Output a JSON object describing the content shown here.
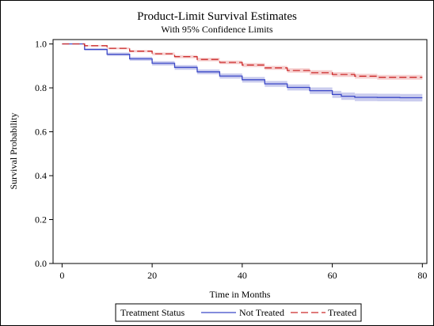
{
  "chart_data": {
    "type": "line",
    "title": "Product-Limit Survival Estimates",
    "subtitle": "With 95% Confidence Limits",
    "xlabel": "Time in Months",
    "ylabel": "Survival Probability",
    "xlim": [
      -2,
      81
    ],
    "ylim": [
      0,
      1.02
    ],
    "x_ticks": [
      0,
      20,
      40,
      60,
      80
    ],
    "y_ticks": [
      0.0,
      0.2,
      0.4,
      0.6,
      0.8,
      1.0
    ],
    "x_tick_labels": [
      "0",
      "20",
      "40",
      "60",
      "80"
    ],
    "y_tick_labels": [
      "0.0",
      "0.2",
      "0.4",
      "0.6",
      "0.8",
      "1.0"
    ],
    "grid": false,
    "legend": {
      "title": "Treatment Status",
      "placement": "bottom"
    },
    "series": [
      {
        "name": "Not Treated",
        "color": "#3a47c7",
        "band_color": "#b8bbe8",
        "line_style": "solid",
        "x": [
          0,
          5,
          10,
          15,
          20,
          25,
          30,
          35,
          40,
          45,
          50,
          55,
          60,
          62,
          65,
          70,
          75,
          80
        ],
        "y": [
          1.0,
          0.975,
          0.953,
          0.932,
          0.912,
          0.893,
          0.873,
          0.854,
          0.837,
          0.818,
          0.802,
          0.787,
          0.77,
          0.762,
          0.757,
          0.756,
          0.755,
          0.755
        ],
        "lower": [
          1.0,
          0.97,
          0.945,
          0.923,
          0.902,
          0.882,
          0.862,
          0.842,
          0.824,
          0.805,
          0.788,
          0.772,
          0.754,
          0.745,
          0.74,
          0.739,
          0.738,
          0.738
        ],
        "upper": [
          1.0,
          0.98,
          0.961,
          0.941,
          0.922,
          0.904,
          0.884,
          0.866,
          0.85,
          0.831,
          0.816,
          0.802,
          0.786,
          0.779,
          0.774,
          0.773,
          0.772,
          0.772
        ]
      },
      {
        "name": "Treated",
        "color": "#cc2a2a",
        "band_color": "#f3c0c0",
        "line_style": "dashed",
        "x": [
          0,
          5,
          10,
          15,
          20,
          25,
          30,
          35,
          40,
          45,
          50,
          55,
          60,
          65,
          70,
          75,
          80
        ],
        "y": [
          1.0,
          0.992,
          0.98,
          0.967,
          0.955,
          0.942,
          0.929,
          0.916,
          0.904,
          0.891,
          0.879,
          0.869,
          0.861,
          0.853,
          0.848,
          0.848,
          0.848
        ],
        "lower": [
          1.0,
          0.989,
          0.976,
          0.962,
          0.949,
          0.935,
          0.921,
          0.908,
          0.895,
          0.882,
          0.869,
          0.858,
          0.85,
          0.842,
          0.837,
          0.837,
          0.837
        ],
        "upper": [
          1.0,
          0.995,
          0.984,
          0.972,
          0.961,
          0.949,
          0.937,
          0.924,
          0.913,
          0.9,
          0.889,
          0.88,
          0.872,
          0.864,
          0.859,
          0.859,
          0.859
        ]
      }
    ]
  }
}
